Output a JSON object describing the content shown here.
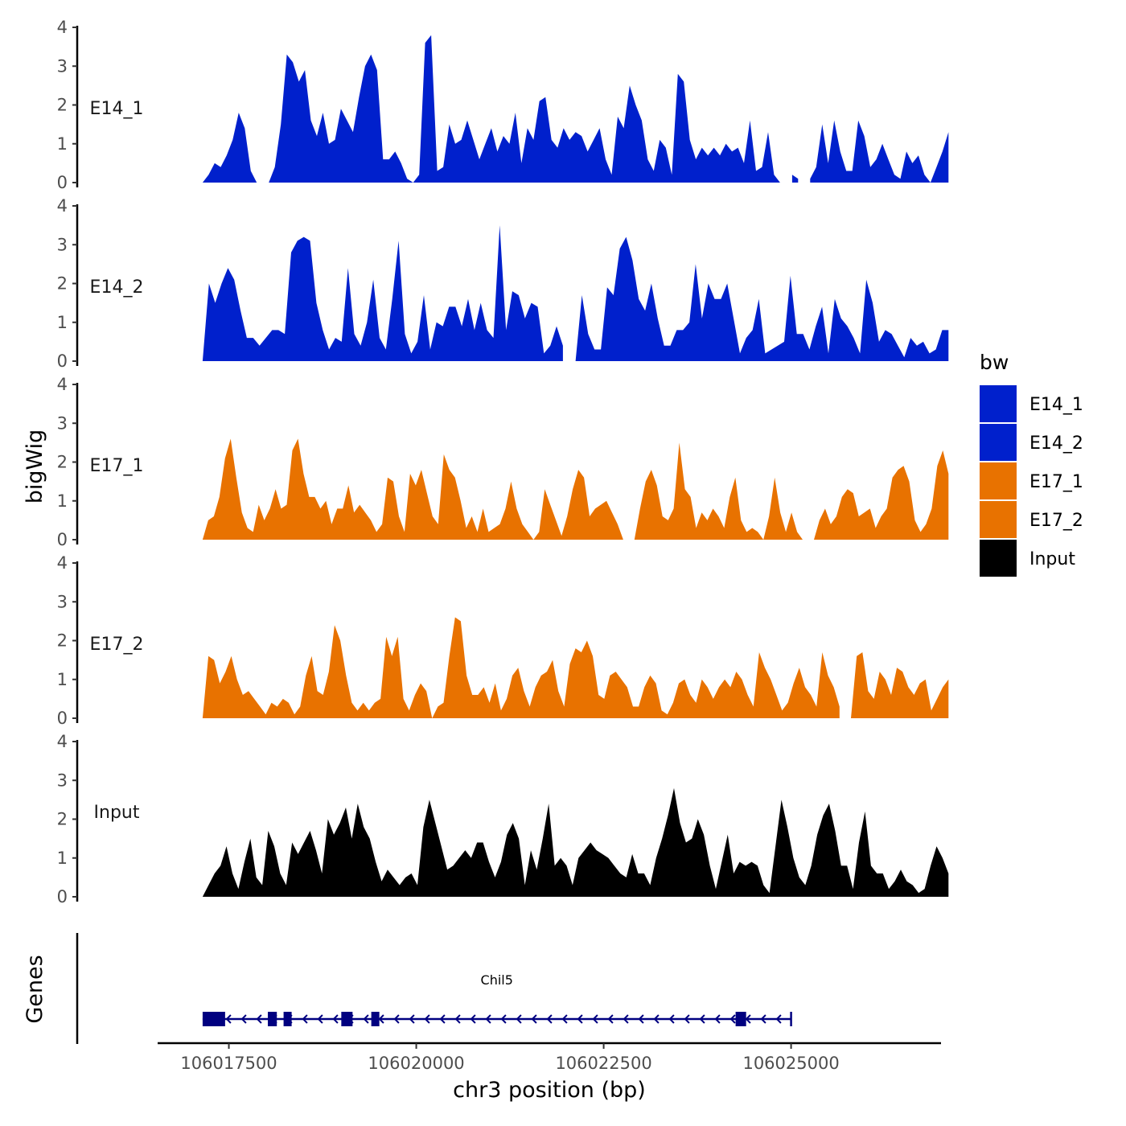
{
  "chart_data": {
    "type": "area",
    "title": "",
    "ylabel": "bigWig",
    "xlabel": "chr3 position (bp)",
    "xlim": [
      106016550,
      106027000
    ],
    "xticks": [
      106017500,
      106020000,
      106022500,
      106025000
    ],
    "xtick_labels": [
      "106017500",
      "106020000",
      "106022500",
      "106025000"
    ],
    "ylim": [
      0,
      4
    ],
    "yticks": [
      0,
      1,
      2,
      3,
      4
    ],
    "ytick_labels": [
      "0",
      "1",
      "2",
      "3",
      "4"
    ],
    "x_start": 106017150,
    "x_end": 106027100,
    "legend": {
      "title": "bw",
      "placement": "right",
      "entries": [
        {
          "label": "E14_1",
          "color": "#0020CC"
        },
        {
          "label": "E14_2",
          "color": "#0020CC"
        },
        {
          "label": "E17_1",
          "color": "#E87200"
        },
        {
          "label": "E17_2",
          "color": "#E87200"
        },
        {
          "label": "Input",
          "color": "#000000"
        }
      ]
    },
    "series": [
      {
        "name": "E14_1",
        "color": "#0020CC",
        "values": [
          0,
          0.2,
          0.5,
          0.4,
          0.7,
          1.1,
          1.8,
          1.4,
          0.3,
          0,
          null,
          0,
          0.4,
          1.5,
          3.3,
          3.1,
          2.6,
          2.9,
          1.6,
          1.2,
          1.8,
          1.0,
          1.1,
          1.9,
          1.6,
          1.3,
          2.2,
          3.0,
          3.3,
          2.9,
          0.6,
          0.6,
          0.8,
          0.5,
          0.1,
          0,
          0.2,
          3.6,
          3.8,
          0.3,
          0.4,
          1.5,
          1.0,
          1.1,
          1.6,
          1.1,
          0.6,
          1.0,
          1.4,
          0.8,
          1.2,
          1.0,
          1.8,
          0.5,
          1.4,
          1.1,
          2.1,
          2.2,
          1.1,
          0.9,
          1.4,
          1.1,
          1.3,
          1.2,
          0.8,
          1.1,
          1.4,
          0.6,
          0.2,
          1.7,
          1.4,
          2.5,
          2.0,
          1.6,
          0.6,
          0.3,
          1.1,
          0.9,
          0.2,
          2.8,
          2.6,
          1.1,
          0.6,
          0.9,
          0.7,
          0.9,
          0.7,
          1.0,
          0.8,
          0.9,
          0.5,
          1.6,
          0.3,
          0.4,
          1.3,
          0.2,
          0,
          null,
          0.2,
          0.1,
          null,
          0.1,
          0.4,
          1.5,
          0.5,
          1.6,
          0.8,
          0.3,
          0.3,
          1.6,
          1.2,
          0.4,
          0.6,
          1.0,
          0.6,
          0.2,
          0.1,
          0.8,
          0.5,
          0.7,
          0.2,
          0,
          0.4,
          0.8,
          1.3
        ]
      },
      {
        "name": "E14_2",
        "color": "#0020CC",
        "values": [
          0,
          2.0,
          1.5,
          2.0,
          2.4,
          2.1,
          1.3,
          0.6,
          0.6,
          0.4,
          0.6,
          0.8,
          0.8,
          0.7,
          2.8,
          3.1,
          3.2,
          3.1,
          1.5,
          0.8,
          0.3,
          0.6,
          0.5,
          2.4,
          0.7,
          0.4,
          1.0,
          2.1,
          0.6,
          0.3,
          1.6,
          3.1,
          0.7,
          0.2,
          0.5,
          1.7,
          0.3,
          1.0,
          0.9,
          1.4,
          1.4,
          0.9,
          1.6,
          0.8,
          1.5,
          0.8,
          0.6,
          3.5,
          0.8,
          1.8,
          1.7,
          1.1,
          1.5,
          1.4,
          0.2,
          0.4,
          0.9,
          0.4,
          null,
          0,
          1.7,
          0.7,
          0.3,
          0.3,
          1.9,
          1.7,
          2.9,
          3.2,
          2.6,
          1.6,
          1.3,
          2.0,
          1.1,
          0.4,
          0.4,
          0.8,
          0.8,
          1.0,
          2.5,
          1.1,
          2.0,
          1.6,
          1.6,
          2.0,
          1.1,
          0.2,
          0.6,
          0.8,
          1.6,
          0.2,
          0.3,
          0.4,
          0.5,
          2.2,
          0.7,
          0.7,
          0.3,
          0.9,
          1.4,
          0.2,
          1.6,
          1.1,
          0.9,
          0.6,
          0.2,
          2.1,
          1.5,
          0.5,
          0.8,
          0.7,
          0.4,
          0.1,
          0.6,
          0.4,
          0.5,
          0.2,
          0.3,
          0.8,
          0.8
        ]
      },
      {
        "name": "E17_1",
        "color": "#E87200",
        "values": [
          0,
          0.5,
          0.6,
          1.1,
          2.1,
          2.6,
          1.6,
          0.7,
          0.3,
          0.2,
          0.9,
          0.5,
          0.8,
          1.3,
          0.8,
          0.9,
          2.3,
          2.6,
          1.7,
          1.1,
          1.1,
          0.8,
          1.0,
          0.4,
          0.8,
          0.8,
          1.4,
          0.7,
          0.9,
          0.7,
          0.5,
          0.2,
          0.4,
          1.6,
          1.5,
          0.6,
          0.2,
          1.7,
          1.4,
          1.8,
          1.2,
          0.6,
          0.4,
          2.2,
          1.8,
          1.6,
          1.0,
          0.3,
          0.6,
          0.2,
          0.8,
          0.2,
          0.3,
          0.4,
          0.8,
          1.5,
          0.8,
          0.4,
          0.2,
          0,
          0.2,
          1.3,
          0.9,
          0.5,
          0.1,
          0.6,
          1.3,
          1.8,
          1.6,
          0.6,
          0.8,
          0.9,
          1.0,
          0.7,
          0.4,
          0,
          null,
          0,
          0.8,
          1.5,
          1.8,
          1.4,
          0.6,
          0.5,
          0.8,
          2.5,
          1.3,
          1.1,
          0.3,
          0.7,
          0.5,
          0.8,
          0.6,
          0.3,
          1.1,
          1.6,
          0.5,
          0.2,
          0.3,
          0.2,
          0,
          0.6,
          1.6,
          0.7,
          0.2,
          0.7,
          0.2,
          0,
          null,
          0,
          0.5,
          0.8,
          0.4,
          0.6,
          1.1,
          1.3,
          1.2,
          0.6,
          0.7,
          0.8,
          0.3,
          0.6,
          0.8,
          1.6,
          1.8,
          1.9,
          1.5,
          0.5,
          0.2,
          0.4,
          0.8,
          1.9,
          2.3,
          1.7
        ]
      },
      {
        "name": "E17_2",
        "color": "#E87200",
        "values": [
          0,
          1.6,
          1.5,
          0.9,
          1.2,
          1.6,
          1.0,
          0.6,
          0.7,
          0.5,
          0.3,
          0.1,
          0.4,
          0.3,
          0.5,
          0.4,
          0.1,
          0.3,
          1.1,
          1.6,
          0.7,
          0.6,
          1.2,
          2.4,
          2.0,
          1.1,
          0.4,
          0.2,
          0.4,
          0.2,
          0.4,
          0.5,
          2.1,
          1.6,
          2.1,
          0.5,
          0.2,
          0.6,
          0.9,
          0.7,
          0,
          0.3,
          0.4,
          1.6,
          2.6,
          2.5,
          1.1,
          0.6,
          0.6,
          0.8,
          0.4,
          0.9,
          0.2,
          0.5,
          1.1,
          1.3,
          0.7,
          0.3,
          0.8,
          1.1,
          1.2,
          1.5,
          0.7,
          0.3,
          1.4,
          1.8,
          1.7,
          2.0,
          1.6,
          0.6,
          0.5,
          1.1,
          1.2,
          1.0,
          0.8,
          0.3,
          0.3,
          0.8,
          1.1,
          0.9,
          0.2,
          0.1,
          0.4,
          0.9,
          1.0,
          0.6,
          0.4,
          1.0,
          0.8,
          0.5,
          0.8,
          1.0,
          0.8,
          1.2,
          1.0,
          0.6,
          0.3,
          1.7,
          1.3,
          1.0,
          0.6,
          0.2,
          0.4,
          0.9,
          1.3,
          0.8,
          0.6,
          0.3,
          1.7,
          1.1,
          0.8,
          0.3,
          null,
          0,
          1.6,
          1.7,
          0.7,
          0.5,
          1.2,
          1.0,
          0.6,
          1.3,
          1.2,
          0.8,
          0.6,
          0.9,
          1.0,
          0.2,
          0.5,
          0.8,
          1.0
        ]
      },
      {
        "name": "Input",
        "color": "#000000",
        "values": [
          0,
          0.3,
          0.6,
          0.8,
          1.3,
          0.6,
          0.2,
          0.9,
          1.5,
          0.5,
          0.3,
          1.7,
          1.3,
          0.6,
          0.3,
          1.4,
          1.1,
          1.4,
          1.7,
          1.2,
          0.6,
          2.0,
          1.6,
          1.9,
          2.3,
          1.5,
          2.4,
          1.8,
          1.5,
          0.9,
          0.4,
          0.7,
          0.5,
          0.3,
          0.5,
          0.6,
          0.3,
          1.8,
          2.5,
          1.9,
          1.3,
          0.7,
          0.8,
          1.0,
          1.2,
          1.0,
          1.4,
          1.4,
          0.9,
          0.5,
          0.9,
          1.6,
          1.9,
          1.5,
          0.3,
          1.2,
          0.7,
          1.5,
          2.4,
          0.8,
          1.0,
          0.8,
          0.3,
          1.0,
          1.2,
          1.4,
          1.2,
          1.1,
          1.0,
          0.8,
          0.6,
          0.5,
          1.1,
          0.6,
          0.6,
          0.3,
          1.0,
          1.5,
          2.1,
          2.8,
          1.9,
          1.4,
          1.5,
          2.0,
          1.6,
          0.8,
          0.2,
          0.9,
          1.6,
          0.6,
          0.9,
          0.8,
          0.9,
          0.8,
          0.3,
          0.1,
          1.3,
          2.5,
          1.8,
          1.0,
          0.5,
          0.3,
          0.8,
          1.6,
          2.1,
          2.4,
          1.7,
          0.8,
          0.8,
          0.2,
          1.4,
          2.2,
          0.8,
          0.6,
          0.6,
          0.2,
          0.4,
          0.7,
          0.4,
          0.3,
          0.1,
          0.2,
          0.8,
          1.3,
          1.0,
          0.6
        ]
      }
    ],
    "gene_track": {
      "ylabel": "Genes",
      "gene": {
        "name": "Chil5",
        "start": 106017150,
        "end": 106025000,
        "strand": "-",
        "exons": [
          [
            106017150,
            106017450
          ],
          [
            106018020,
            106018140
          ],
          [
            106018230,
            106018320
          ],
          [
            106019000,
            106019150
          ],
          [
            106019400,
            106019500
          ],
          [
            106024260,
            106024400
          ]
        ]
      }
    }
  }
}
